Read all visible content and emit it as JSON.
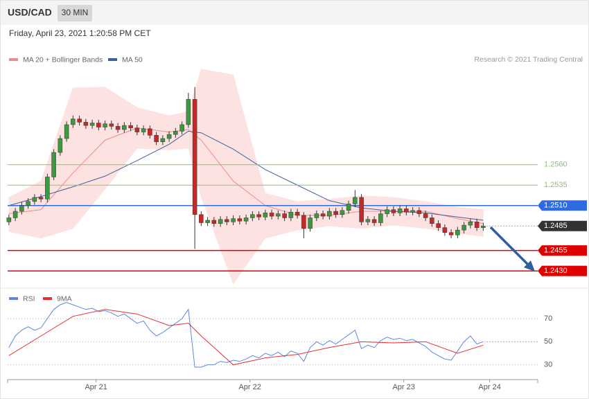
{
  "header": {
    "symbol": "USD/CAD",
    "interval": "30 MIN",
    "timestamp": "Friday, April 23, 2021 1:20:58 PM CET"
  },
  "chart_data": [
    {
      "type": "candlestick",
      "credit": "Research © 2021 Trading Central",
      "categories": [
        null,
        null,
        null,
        null,
        null,
        null,
        null,
        null,
        null,
        null,
        null,
        null,
        null,
        null,
        null,
        null,
        null,
        null,
        null,
        null,
        null,
        null,
        null,
        null,
        null,
        null,
        null,
        null,
        null,
        null,
        null,
        null,
        null,
        null,
        null,
        null,
        null,
        null,
        null,
        null,
        null,
        null,
        null,
        null,
        null,
        null,
        null,
        null,
        null,
        null,
        null,
        null,
        null,
        null,
        null,
        null,
        null,
        null,
        null,
        null,
        null,
        null,
        null,
        null,
        null,
        null,
        null,
        null,
        null,
        null,
        null,
        null,
        null,
        null,
        null
      ],
      "open": [
        1.249,
        1.2495,
        1.2503,
        1.251,
        1.2515,
        1.252,
        1.2518,
        1.2545,
        1.2575,
        1.2592,
        1.2609,
        1.2616,
        1.2612,
        1.2608,
        1.2611,
        1.2606,
        1.261,
        1.2607,
        1.2603,
        1.2608,
        1.2605,
        1.26,
        1.2604,
        1.2596,
        1.2588,
        1.2592,
        1.2597,
        1.2601,
        1.2609,
        1.264,
        1.2499,
        1.2489,
        1.2492,
        1.2488,
        1.2493,
        1.249,
        1.2494,
        1.2491,
        1.2495,
        1.2499,
        1.2496,
        1.2501,
        1.2497,
        1.25,
        1.2495,
        1.2502,
        1.2498,
        1.2482,
        1.2495,
        1.25,
        1.2497,
        1.2503,
        1.2499,
        1.2504,
        1.2512,
        1.252,
        1.249,
        1.2493,
        1.2489,
        1.25,
        1.2505,
        1.2501,
        1.2506,
        1.2502,
        1.2504,
        1.25,
        1.2495,
        1.2488,
        1.2483,
        1.2477,
        1.2474,
        1.248,
        1.2486,
        1.249,
        1.2483
      ],
      "high": [
        1.2499,
        1.2507,
        1.2514,
        1.2519,
        1.2524,
        1.2524,
        1.2549,
        1.2579,
        1.2596,
        1.2613,
        1.262,
        1.262,
        1.2616,
        1.2615,
        1.2615,
        1.2614,
        1.2614,
        1.2611,
        1.2612,
        1.2612,
        1.2609,
        1.2608,
        1.2608,
        1.26,
        1.2596,
        1.2601,
        1.2605,
        1.2613,
        1.2648,
        1.2655,
        1.2503,
        1.2496,
        1.2496,
        1.2497,
        1.2497,
        1.2498,
        1.2498,
        1.2499,
        1.2503,
        1.2503,
        1.2505,
        1.2505,
        1.2504,
        1.2504,
        1.2506,
        1.2506,
        1.2502,
        1.2499,
        1.2504,
        1.2504,
        1.2507,
        1.2507,
        1.2508,
        1.2516,
        1.2529,
        1.2524,
        1.2497,
        1.2497,
        1.2504,
        1.2509,
        1.2509,
        1.251,
        1.251,
        1.2508,
        1.2508,
        1.2504,
        1.2499,
        1.2492,
        1.2487,
        1.2481,
        1.2484,
        1.249,
        1.2494,
        1.2494,
        1.2489
      ],
      "low": [
        1.2486,
        1.2491,
        1.2499,
        1.2506,
        1.2511,
        1.2514,
        1.2514,
        1.2541,
        1.2571,
        1.2588,
        1.2605,
        1.2608,
        1.2604,
        1.2604,
        1.2602,
        1.2602,
        1.2603,
        1.2599,
        1.2599,
        1.2601,
        1.2596,
        1.2596,
        1.2592,
        1.2584,
        1.2584,
        1.2588,
        1.2593,
        1.2597,
        1.2605,
        1.2457,
        1.2485,
        1.2485,
        1.2484,
        1.2484,
        1.2486,
        1.2486,
        1.2487,
        1.2487,
        1.2491,
        1.2492,
        1.2492,
        1.2493,
        1.2493,
        1.2491,
        1.2491,
        1.2494,
        1.247,
        1.2478,
        1.2491,
        1.2493,
        1.2493,
        1.2495,
        1.2495,
        1.25,
        1.2508,
        1.2486,
        1.2486,
        1.2485,
        1.2485,
        1.2496,
        1.2497,
        1.2497,
        1.2498,
        1.2498,
        1.2496,
        1.2491,
        1.2484,
        1.2479,
        1.2473,
        1.247,
        1.247,
        1.2476,
        1.2482,
        1.2479,
        1.2479
      ],
      "close": [
        1.2495,
        1.2503,
        1.251,
        1.2515,
        1.252,
        1.2518,
        1.2545,
        1.2575,
        1.2592,
        1.2609,
        1.2616,
        1.2612,
        1.2608,
        1.2611,
        1.2606,
        1.261,
        1.2607,
        1.2603,
        1.2608,
        1.2605,
        1.26,
        1.2604,
        1.2596,
        1.2588,
        1.2592,
        1.2597,
        1.2601,
        1.2609,
        1.264,
        1.2499,
        1.2489,
        1.2492,
        1.2488,
        1.2493,
        1.249,
        1.2494,
        1.2491,
        1.2495,
        1.2499,
        1.2496,
        1.2501,
        1.2497,
        1.25,
        1.2495,
        1.2502,
        1.2498,
        1.2482,
        1.2495,
        1.25,
        1.2497,
        1.2503,
        1.2499,
        1.2504,
        1.2512,
        1.252,
        1.249,
        1.2493,
        1.2489,
        1.25,
        1.2505,
        1.2501,
        1.2506,
        1.2502,
        1.2504,
        1.25,
        1.2495,
        1.2488,
        1.2483,
        1.2477,
        1.2474,
        1.248,
        1.2486,
        1.249,
        1.2483,
        1.2485
      ],
      "up_color": "#3c9a3c",
      "down_color": "#c62828",
      "xlim": [
        -0.2,
        82.5
      ],
      "ylim": [
        1.2414,
        1.2681
      ],
      "overlays": [
        {
          "name": "MA 20 + Bollinger Bands",
          "color": "#f08a8a",
          "band_color": "#fde2e2",
          "x": [
            0,
            5,
            10,
            15,
            20,
            25,
            28,
            30,
            35,
            40,
            45,
            50,
            55,
            60,
            65,
            70,
            74
          ],
          "values": [
            1.25,
            1.2505,
            1.255,
            1.259,
            1.2605,
            1.26,
            1.2603,
            1.259,
            1.254,
            1.251,
            1.2498,
            1.2498,
            1.2503,
            1.2503,
            1.2503,
            1.2494,
            1.2488
          ],
          "upper": [
            1.252,
            1.254,
            1.2654,
            1.2655,
            1.263,
            1.262,
            1.2625,
            1.2677,
            1.267,
            1.2525,
            1.2515,
            1.2518,
            1.2522,
            1.252,
            1.2515,
            1.2508,
            1.2505
          ],
          "lower": [
            1.2478,
            1.247,
            1.2482,
            1.253,
            1.258,
            1.2578,
            1.258,
            1.252,
            1.2414,
            1.247,
            1.248,
            1.2485,
            1.2482,
            1.2486,
            1.2482,
            1.2476,
            1.2472
          ]
        },
        {
          "name": "MA 50",
          "color": "#3d5f9a",
          "x": [
            0,
            5,
            10,
            15,
            20,
            25,
            28,
            30,
            35,
            40,
            45,
            50,
            55,
            60,
            65,
            70,
            74
          ],
          "values": [
            1.251,
            1.2521,
            1.2533,
            1.2546,
            1.2565,
            1.2585,
            1.2601,
            1.2599,
            1.2579,
            1.2554,
            1.2535,
            1.2516,
            1.2507,
            1.2503,
            1.2501,
            1.2496,
            1.2492
          ]
        }
      ],
      "levels": [
        {
          "value": 1.256,
          "label": "1.2560",
          "color": "#8cc46c",
          "box": false,
          "dotted": false
        },
        {
          "value": 1.2535,
          "label": "1.2535",
          "color": "#8cc46c",
          "box": false,
          "dotted": false
        },
        {
          "value": 1.251,
          "label": "1.2510",
          "color": "#2d6be4",
          "box": true,
          "dotted": false
        },
        {
          "value": 1.2485,
          "label": "1.2485",
          "color": "#333333",
          "box": true,
          "dotted": true
        },
        {
          "value": 1.2455,
          "label": "1.2455",
          "color": "#e00000",
          "box": true,
          "dotted": false
        },
        {
          "value": 1.243,
          "label": "1.2430",
          "color": "#e00000",
          "box": true,
          "dotted": false
        }
      ]
    },
    {
      "type": "line",
      "xlim": [
        -0.2,
        82.5
      ],
      "xticks": [
        {
          "value": 13.6,
          "label": "Apr 21"
        },
        {
          "value": 37.6,
          "label": "Apr 22"
        },
        {
          "value": 61.6,
          "label": "Apr 23"
        },
        {
          "value": 75.0,
          "label": "Apr 24"
        }
      ],
      "ylim": [
        19,
        91
      ],
      "yticks": [
        30,
        50,
        70
      ],
      "series": [
        {
          "name": "RSI",
          "color": "#5b86e5",
          "values": [
            45,
            55,
            60,
            63,
            60,
            62,
            70,
            78,
            82,
            84,
            82,
            80,
            78,
            79,
            76,
            77,
            75,
            72,
            74,
            70,
            66,
            68,
            60,
            55,
            58,
            62,
            66,
            70,
            78,
            28,
            28,
            30,
            30,
            33,
            32,
            34,
            33,
            35,
            38,
            36,
            40,
            38,
            41,
            37,
            42,
            40,
            33,
            45,
            50,
            47,
            51,
            48,
            52,
            56,
            60,
            44,
            47,
            45,
            51,
            54,
            52,
            53,
            51,
            52,
            49,
            46,
            41,
            38,
            35,
            34,
            42,
            50,
            55,
            48,
            50
          ]
        },
        {
          "name": "9MA",
          "color": "#e53030",
          "x": [
            0,
            5,
            10,
            15,
            20,
            25,
            28,
            30,
            35,
            40,
            45,
            50,
            55,
            60,
            65,
            70,
            74
          ],
          "values": [
            38,
            55,
            72,
            78,
            74,
            64,
            66,
            55,
            30,
            36,
            39,
            45,
            50,
            49,
            50,
            40,
            47
          ]
        }
      ]
    }
  ]
}
